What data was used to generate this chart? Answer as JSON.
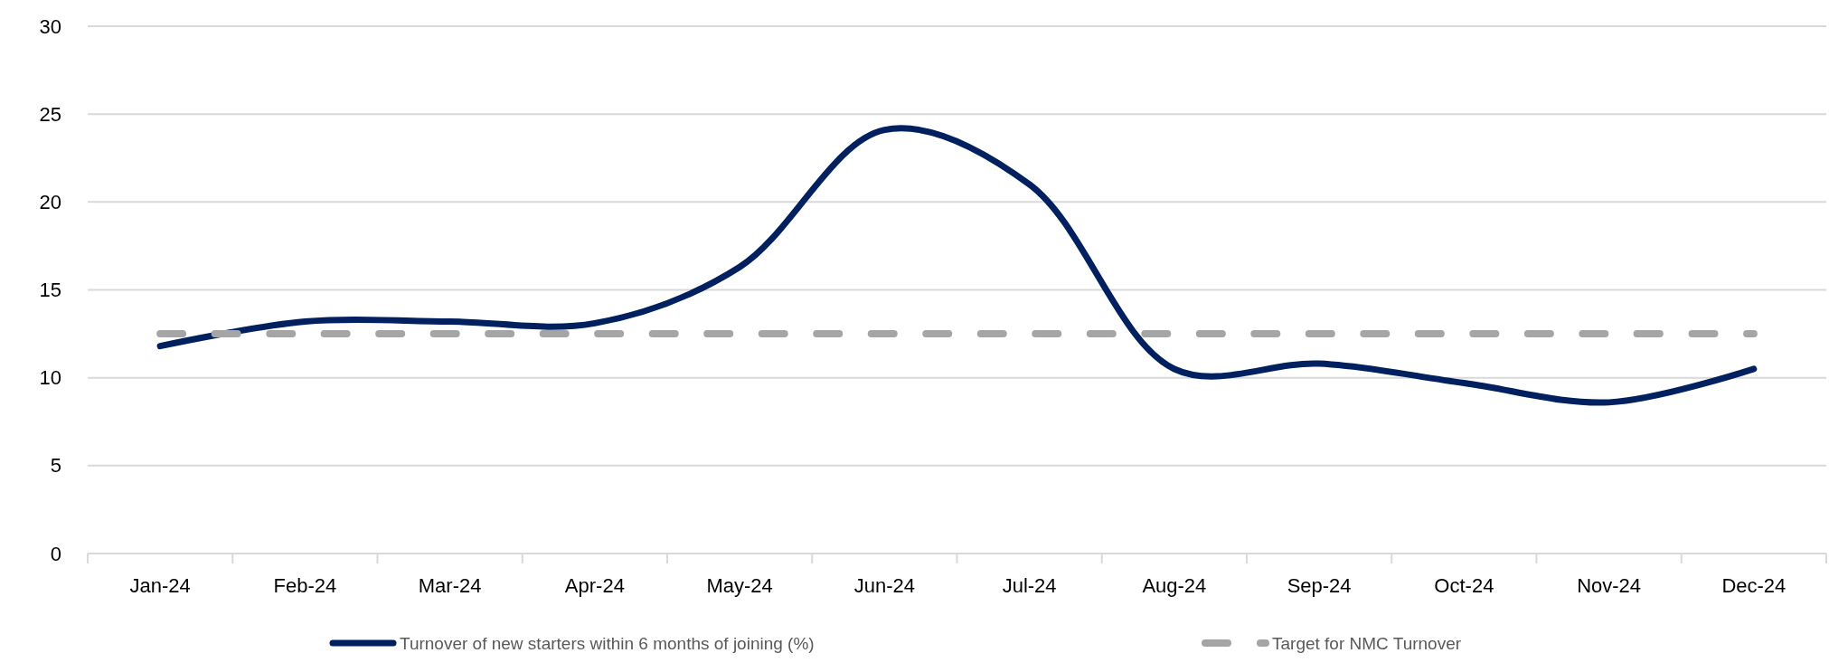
{
  "chart_data": {
    "type": "line",
    "categories": [
      "Jan-24",
      "Feb-24",
      "Mar-24",
      "Apr-24",
      "May-24",
      "Jun-24",
      "Jul-24",
      "Aug-24",
      "Sep-24",
      "Oct-24",
      "Nov-24",
      "Dec-24"
    ],
    "series": [
      {
        "name": "Turnover of new starters within 6 months of joining (%)",
        "color": "#002060",
        "line_style": "solid",
        "values": [
          11.8,
          13.2,
          13.2,
          13.1,
          16.3,
          24.1,
          21.0,
          10.5,
          10.8,
          9.7,
          8.6,
          10.5
        ]
      },
      {
        "name": "Target for NMC Turnover",
        "color": "#a5a5a5",
        "line_style": "dashed",
        "values": [
          12.5,
          12.5,
          12.5,
          12.5,
          12.5,
          12.5,
          12.5,
          12.5,
          12.5,
          12.5,
          12.5,
          12.5
        ]
      }
    ],
    "ylim": [
      0,
      30
    ],
    "yticks": [
      0,
      5,
      10,
      15,
      20,
      25,
      30
    ],
    "grid": "y",
    "legend": "bottom"
  }
}
